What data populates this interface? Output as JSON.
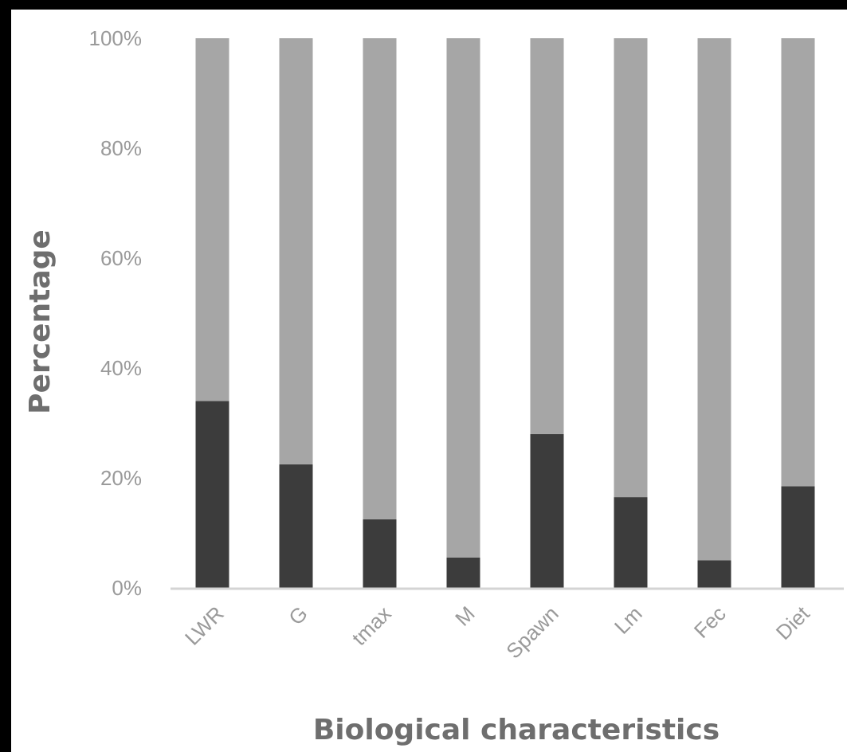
{
  "chart_data": {
    "type": "bar",
    "stacked": true,
    "percent_stacked": true,
    "title": "",
    "xlabel": "Biological characteristics",
    "ylabel": "Percentage",
    "ylim": [
      0,
      100
    ],
    "yticks": [
      "0%",
      "20%",
      "40%",
      "60%",
      "80%",
      "100%"
    ],
    "categories": [
      "LWR",
      "G",
      "tmax",
      "M",
      "Spawn",
      "Lm",
      "Fec",
      "Diet"
    ],
    "series": [
      {
        "values": [
          34,
          22.5,
          12.5,
          5.5,
          28,
          16.5,
          5,
          18.5
        ],
        "color": "#3c3c3c"
      },
      {
        "values": [
          66,
          77.5,
          87.5,
          94.5,
          72,
          83.5,
          95,
          81.5
        ],
        "color": "#a6a6a6"
      }
    ],
    "grid": false,
    "legend": "none"
  }
}
